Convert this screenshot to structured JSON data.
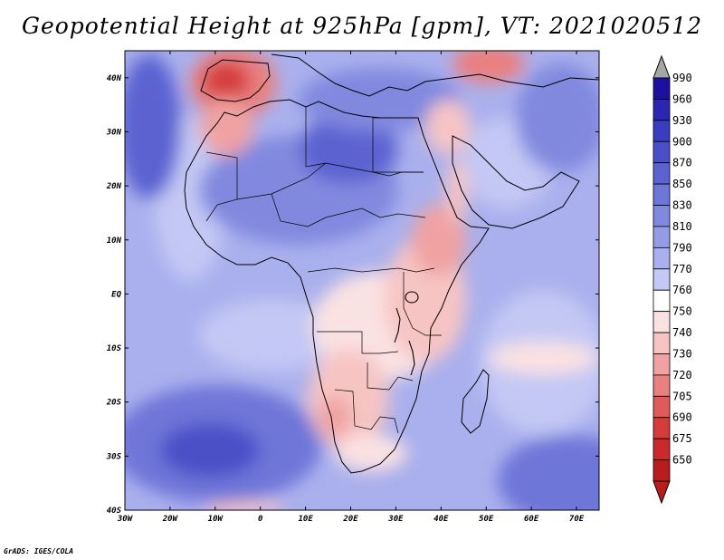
{
  "title": "Geopotential Height at 925hPa [gpm], VT: 2021020512",
  "credit": "GrADS: IGES/COLA",
  "map": {
    "lon_ticks": [
      "30W",
      "20W",
      "10W",
      "0",
      "10E",
      "20E",
      "30E",
      "40E",
      "50E",
      "60E",
      "70E"
    ],
    "lat_ticks": [
      "40N",
      "30N",
      "20N",
      "10N",
      "EQ",
      "10S",
      "20S",
      "30S",
      "40S"
    ],
    "lon_range": [
      -30,
      75
    ],
    "lat_range": [
      -40,
      45
    ]
  },
  "colorbar": {
    "labels": [
      "990",
      "960",
      "930",
      "900",
      "870",
      "850",
      "830",
      "810",
      "790",
      "770",
      "760",
      "750",
      "740",
      "730",
      "720",
      "705",
      "690",
      "675",
      "650"
    ],
    "colors": [
      "#1d0fa0",
      "#2b26b2",
      "#3a3dbf",
      "#4b50c8",
      "#5c63d1",
      "#6e76d8",
      "#8189df",
      "#959ce6",
      "#aab0ed",
      "#c3c8f4",
      "#ffffff",
      "#fbe2e2",
      "#f7c4c4",
      "#f0a2a2",
      "#e98080",
      "#e05a5a",
      "#d63c3c",
      "#cc2a2a",
      "#b81c1c"
    ],
    "top_arrow_color": "#a6a6a6",
    "bottom_arrow_color": "#b81c1c"
  }
}
